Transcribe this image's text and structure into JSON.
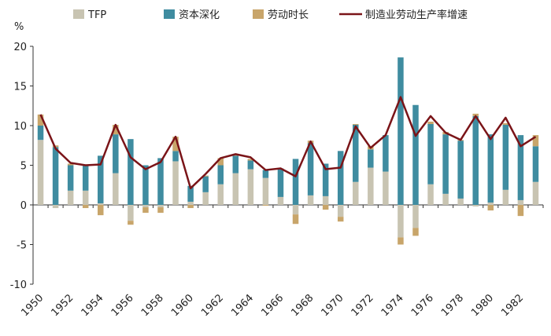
{
  "chart_data": {
    "type": "bar",
    "stacked": true,
    "unit_label": "%",
    "years": [
      1950,
      1951,
      1952,
      1953,
      1954,
      1955,
      1956,
      1957,
      1958,
      1959,
      1960,
      1961,
      1962,
      1963,
      1964,
      1965,
      1966,
      1967,
      1968,
      1969,
      1970,
      1971,
      1972,
      1973,
      1974,
      1975,
      1976,
      1977,
      1978,
      1979,
      1980,
      1981,
      1982,
      1983
    ],
    "x_tick_labels": [
      "1950",
      "1952",
      "1954",
      "1956",
      "1958",
      "1960",
      "1962",
      "1964",
      "1966",
      "1968",
      "1970",
      "1972",
      "1974",
      "1976",
      "1978",
      "1980",
      "1982"
    ],
    "ylim": [
      -10,
      20
    ],
    "y_ticks": [
      -10,
      -5,
      0,
      5,
      10,
      15,
      20
    ],
    "legend": [
      {
        "name": "TFP",
        "type": "bar",
        "color": "#c8c4b2"
      },
      {
        "name": "资本深化",
        "type": "bar",
        "color": "#3f8ca0"
      },
      {
        "name": "劳动时长",
        "type": "bar",
        "color": "#c8a56a"
      },
      {
        "name": "制造业劳动生产率增速",
        "type": "line",
        "color": "#7a1418"
      }
    ],
    "series": [
      {
        "name": "TFP",
        "color": "#c8c4b2",
        "values": [
          8.2,
          -0.4,
          1.8,
          1.8,
          0.2,
          4.0,
          -2.0,
          -0.3,
          -0.3,
          5.5,
          0.4,
          1.6,
          2.6,
          4.0,
          4.5,
          3.4,
          1.0,
          -1.2,
          1.2,
          1.1,
          -1.5,
          2.9,
          4.7,
          4.2,
          -4.1,
          -2.9,
          2.6,
          1.4,
          0.8,
          -0.2,
          0.3,
          1.9,
          0.6,
          2.9
        ]
      },
      {
        "name": "资本深化",
        "color": "#3f8ca0",
        "values": [
          1.8,
          7.3,
          3.2,
          3.3,
          6.0,
          4.9,
          8.3,
          5.0,
          5.9,
          1.3,
          2.0,
          2.0,
          2.4,
          2.2,
          1.1,
          1.0,
          3.6,
          5.8,
          6.6,
          4.1,
          6.8,
          7.2,
          2.3,
          4.6,
          18.6,
          12.6,
          7.6,
          7.5,
          7.3,
          11.2,
          8.6,
          8.2,
          8.2,
          4.5
        ]
      },
      {
        "name": "劳动时长",
        "color": "#c8a56a",
        "values": [
          1.4,
          0.2,
          0.2,
          -0.4,
          -1.3,
          1.2,
          -0.5,
          -0.7,
          -0.7,
          1.8,
          -0.4,
          0.1,
          0.9,
          0.1,
          0.2,
          -0.1,
          0.0,
          -1.2,
          0.3,
          -0.6,
          -0.6,
          0.1,
          0.4,
          0.0,
          -0.9,
          -1.0,
          0.3,
          0.3,
          0.1,
          0.3,
          -0.7,
          0.2,
          -1.4,
          1.4
        ]
      },
      {
        "name": "制造业劳动生产率增速",
        "type": "line",
        "color": "#7a1418",
        "values": [
          11.4,
          7.1,
          5.3,
          5.0,
          5.1,
          10.1,
          6.0,
          4.5,
          5.4,
          8.6,
          2.1,
          3.9,
          5.9,
          6.4,
          6.0,
          4.4,
          4.6,
          3.6,
          8.0,
          4.5,
          4.7,
          9.9,
          7.2,
          8.8,
          13.6,
          8.7,
          11.2,
          9.1,
          8.2,
          11.2,
          8.3,
          11.0,
          7.4,
          8.6
        ]
      }
    ]
  }
}
